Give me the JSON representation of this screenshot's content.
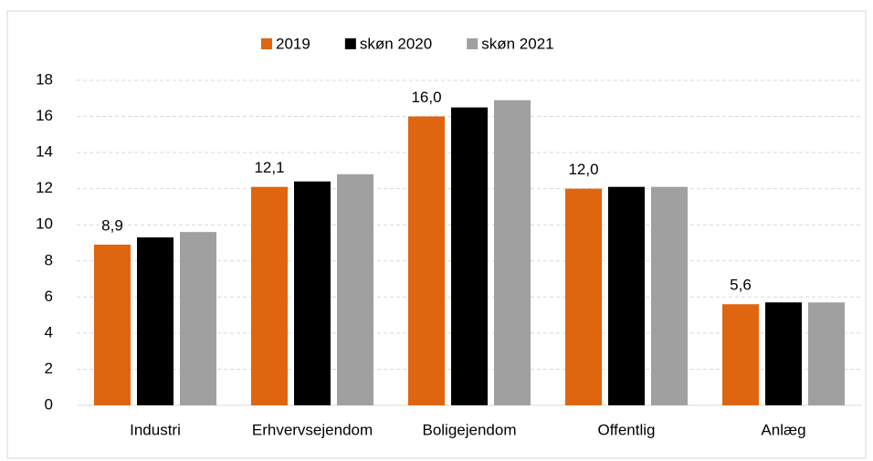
{
  "chart_data": {
    "type": "bar",
    "categories": [
      "Industri",
      "Erhvervsejendom",
      "Boligejendom",
      "Offentlig",
      "Anlæg"
    ],
    "series": [
      {
        "name": "2019",
        "color": "#e06510",
        "values": [
          8.9,
          12.1,
          16.0,
          12.0,
          5.6
        ],
        "value_labels": [
          "8,9",
          "12,1",
          "16,0",
          "12,0",
          "5,6"
        ]
      },
      {
        "name": "skøn 2020",
        "color": "#000000",
        "values": [
          9.3,
          12.4,
          16.5,
          12.1,
          5.7
        ]
      },
      {
        "name": "skøn 2021",
        "color": "#a0a0a0",
        "values": [
          9.6,
          12.8,
          16.9,
          12.1,
          5.7
        ]
      }
    ],
    "ylim": [
      0,
      18
    ],
    "yticks": [
      0,
      2,
      4,
      6,
      8,
      10,
      12,
      14,
      16,
      18
    ],
    "grid": true,
    "legend": "top"
  }
}
